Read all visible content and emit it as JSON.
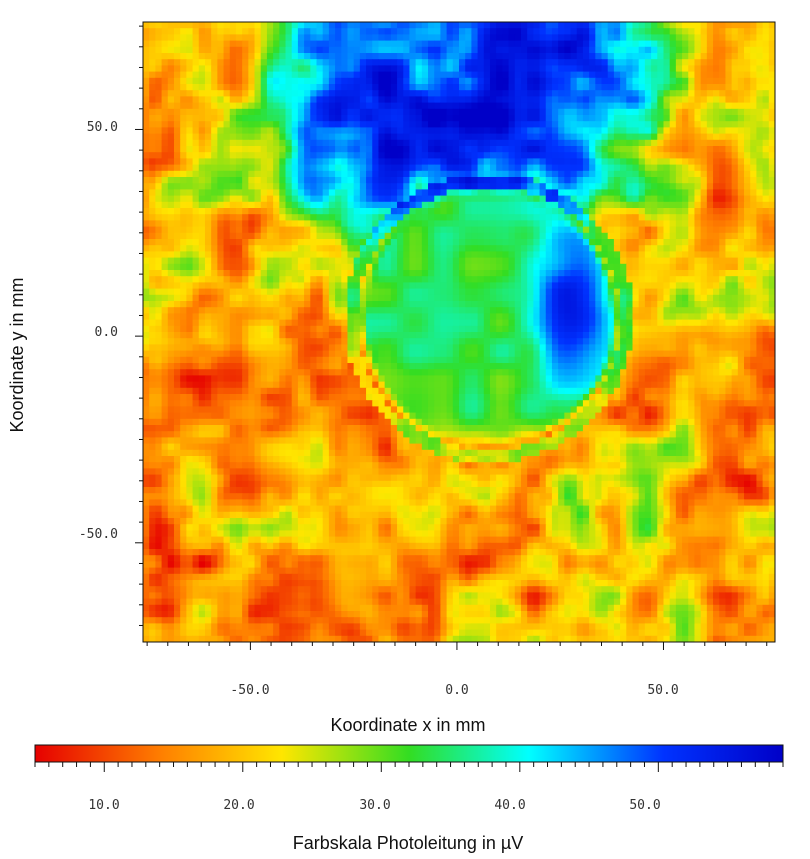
{
  "chart_data": {
    "type": "heatmap",
    "title": "",
    "xlabel": "Koordinate x in mm",
    "ylabel": "Koordinate y in mm",
    "xlim": [
      -76,
      77
    ],
    "ylim": [
      -74,
      76
    ],
    "x_ticks": [
      -50.0,
      0.0,
      50.0
    ],
    "y_ticks": [
      50.0,
      0.0,
      -50.0
    ],
    "x_tick_labels": [
      "-50.0",
      "0.0",
      "50.0"
    ],
    "y_tick_labels": [
      "50.0",
      "0.0",
      "-50.0"
    ],
    "colorbar": {
      "label": "Farbskala Photoleitung in µV",
      "range": [
        5,
        59
      ],
      "ticks": [
        10.0,
        20.0,
        30.0,
        40.0,
        50.0
      ],
      "tick_labels": [
        "10.0",
        "20.0",
        "30.0",
        "40.0",
        "50.0"
      ],
      "colormap": "red-orange-yellow-green-cyan-blue",
      "colors": [
        "#e60000",
        "#ff8000",
        "#ffe600",
        "#33dd22",
        "#00ffff",
        "#0033ff",
        "#0000c8"
      ]
    },
    "features": [
      {
        "name": "low photoconductivity region (top)",
        "x": 0,
        "y": 60,
        "value": 55
      },
      {
        "name": "circular spot",
        "x": 7,
        "y": 5,
        "value": 36
      },
      {
        "name": "spot dark core",
        "x": 27,
        "y": 10,
        "value": 52
      },
      {
        "name": "spot lower rim",
        "x": 10,
        "y": -28,
        "value": 18
      }
    ],
    "background_value": 17
  }
}
